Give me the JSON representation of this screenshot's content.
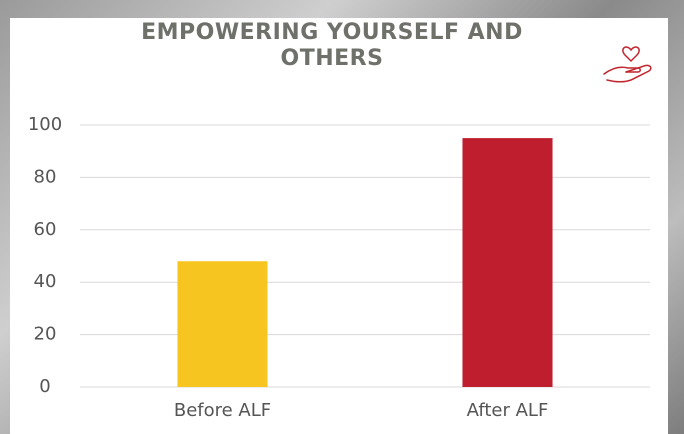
{
  "chart_data": {
    "type": "bar",
    "title": "EMPOWERING YOURSELF AND OTHERS",
    "categories": [
      "Before ALF",
      "After ALF"
    ],
    "values": [
      48,
      95
    ],
    "colors": [
      "#f7c520",
      "#be1e2d"
    ],
    "ylim": [
      0,
      100
    ],
    "yticks": [
      0,
      20,
      40,
      60,
      80,
      100
    ],
    "grid": true
  }
}
